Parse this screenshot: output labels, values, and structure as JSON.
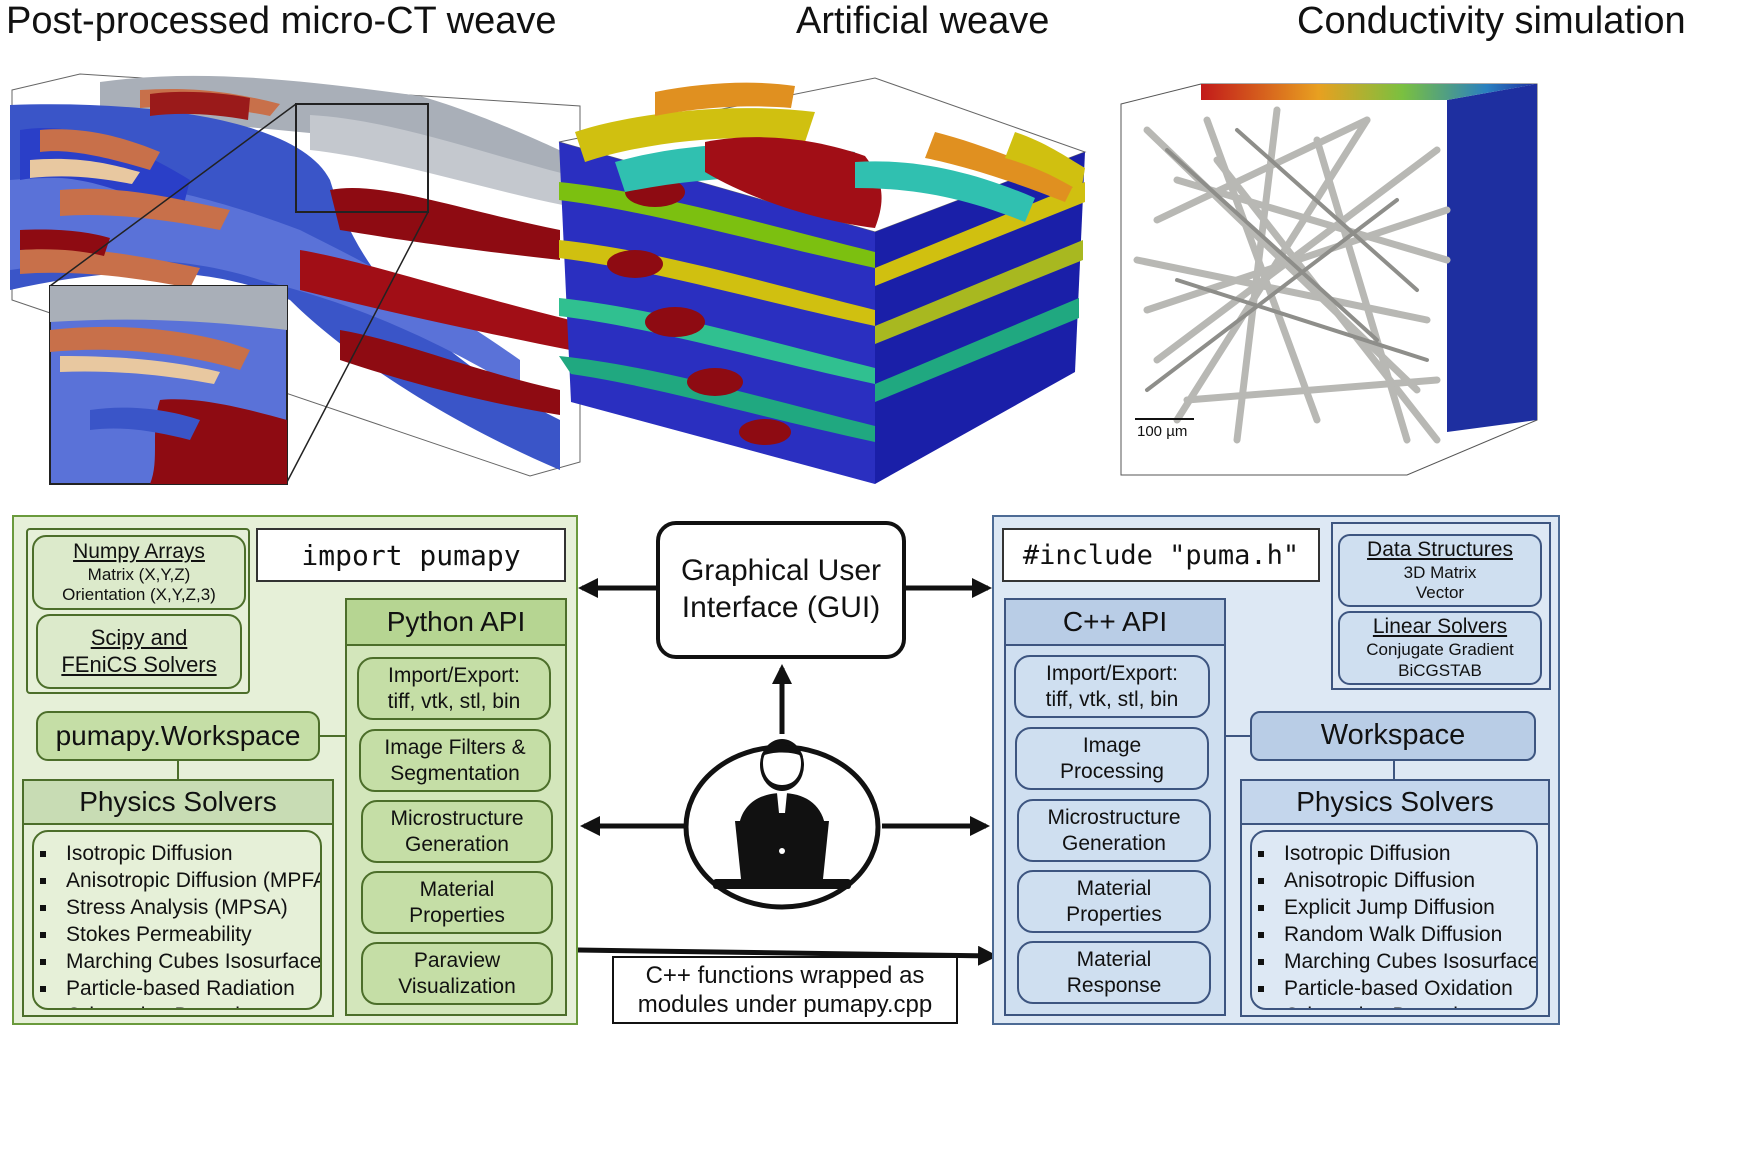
{
  "titles": {
    "left": "Post-processed micro-CT weave",
    "middle": "Artificial weave",
    "right": "Conductivity simulation"
  },
  "scale_bar": "100 µm",
  "gui": {
    "line1": "Graphical User",
    "line2": "Interface (GUI)"
  },
  "wrap_note": {
    "line1": "C++ functions wrapped as",
    "line2": "modules under pumapy.cpp"
  },
  "python": {
    "import": "import pumapy",
    "numpy": {
      "title": "Numpy Arrays",
      "line1": "Matrix (X,Y,Z)",
      "line2": "Orientation (X,Y,Z,3)"
    },
    "scipy": {
      "line1": "Scipy and",
      "line2": "FEniCS Solvers"
    },
    "workspace": "pumapy.Workspace",
    "api_title": "Python API",
    "api_items": [
      {
        "line1": "Import/Export:",
        "line2": "tiff, vtk, stl, bin"
      },
      {
        "line1": "Image Filters &",
        "line2": "Segmentation"
      },
      {
        "line1": "Microstructure",
        "line2": "Generation"
      },
      {
        "line1": "Material",
        "line2": "Properties"
      },
      {
        "line1": "Paraview",
        "line2": "Visualization"
      }
    ],
    "solvers_title": "Physics Solvers",
    "solvers": [
      "Isotropic Diffusion",
      "Anisotropic Diffusion (MPFA)",
      "Stress Analysis (MPSA)",
      "Stokes Permeability",
      "Marching Cubes Isosurface",
      "Particle-based Radiation",
      "Orientation Detection"
    ]
  },
  "cpp": {
    "include": "#include \"puma.h\"",
    "data_structures": {
      "title": "Data Structures",
      "line1": "3D Matrix",
      "line2": "Vector"
    },
    "linear_solvers": {
      "title": "Linear Solvers",
      "line1": "Conjugate Gradient",
      "line2": "BiCGSTAB"
    },
    "workspace": "Workspace",
    "api_title": "C++ API",
    "api_items": [
      {
        "line1": "Import/Export:",
        "line2": "tiff, vtk, stl, bin"
      },
      {
        "line1": "Image",
        "line2": "Processing"
      },
      {
        "line1": "Microstructure",
        "line2": "Generation"
      },
      {
        "line1": "Material",
        "line2": "Properties"
      },
      {
        "line1": "Material",
        "line2": "Response"
      }
    ],
    "solvers_title": "Physics Solvers",
    "solvers": [
      "Isotropic Diffusion",
      "Anisotropic Diffusion",
      "Explicit Jump Diffusion",
      "Random Walk Diffusion",
      "Marching Cubes Isosurface",
      "Particle-based Oxidation",
      "Orientation Detection"
    ]
  },
  "icons": [
    "user-at-laptop-icon",
    "arrow-icon"
  ],
  "colors": {
    "python_panel": "#e6f0d8",
    "python_border": "#6a9a3c",
    "cpp_panel": "#dde8f4",
    "cpp_border": "#4d6b95",
    "yarn_blue": "#2a3fc8",
    "yarn_red": "#8e0b12",
    "yarn_gray": "#a9afb8"
  }
}
